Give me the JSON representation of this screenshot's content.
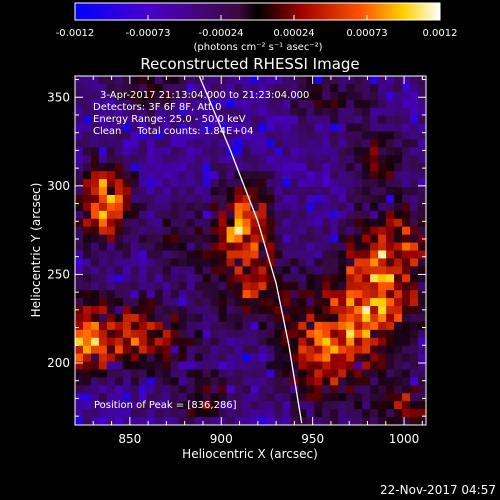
{
  "chart_data": {
    "type": "heatmap",
    "title": "Reconstructed RHESSI Image",
    "xlabel": "Heliocentric X (arcsec)",
    "ylabel": "Heliocentric Y (arcsec)",
    "xlim": [
      820,
      1012
    ],
    "ylim": [
      165,
      362
    ],
    "xticks": [
      850,
      900,
      950,
      1000
    ],
    "yticks": [
      200,
      250,
      300,
      350
    ],
    "colorbar": {
      "ticks": [
        "-0.0012",
        "-0.00073",
        "-0.00024",
        "0.00024",
        "0.00073",
        "0.0012"
      ],
      "range": [
        -0.0012,
        0.0012
      ],
      "unit_label": "(photons cm⁻² s⁻¹ asec⁻²)"
    },
    "annotations": {
      "time": "3-Apr-2017 21:13:04.000 to 21:23:04.000",
      "detectors": "Detectors: 3F 6F 8F, Att 0",
      "energy": "Energy Range: 25.0 - 50.0 keV",
      "method": "Clean     Total counts: 1.84E+04",
      "peak": "Position of Peak = [836,286]"
    },
    "sources": [
      {
        "x": 836,
        "y": 290,
        "intensity": 1.0,
        "sx": 10,
        "sy": 16
      },
      {
        "x": 850,
        "y": 215,
        "intensity": 0.72,
        "sx": 22,
        "sy": 14
      },
      {
        "x": 822,
        "y": 215,
        "intensity": 0.6,
        "sx": 10,
        "sy": 16
      },
      {
        "x": 913,
        "y": 280,
        "intensity": 0.92,
        "sx": 10,
        "sy": 16
      },
      {
        "x": 916,
        "y": 245,
        "intensity": 0.6,
        "sx": 14,
        "sy": 16
      },
      {
        "x": 955,
        "y": 205,
        "intensity": 0.75,
        "sx": 16,
        "sy": 22
      },
      {
        "x": 985,
        "y": 235,
        "intensity": 0.85,
        "sx": 18,
        "sy": 22
      },
      {
        "x": 995,
        "y": 270,
        "intensity": 0.55,
        "sx": 14,
        "sy": 14
      },
      {
        "x": 1000,
        "y": 175,
        "intensity": 0.55,
        "sx": 12,
        "sy": 10
      },
      {
        "x": 985,
        "y": 315,
        "intensity": 0.45,
        "sx": 12,
        "sy": 12
      },
      {
        "x": 860,
        "y": 355,
        "intensity": 0.35,
        "sx": 20,
        "sy": 8
      },
      {
        "x": 960,
        "y": 350,
        "intensity": 0.35,
        "sx": 18,
        "sy": 8
      },
      {
        "x": 890,
        "y": 180,
        "intensity": 0.4,
        "sx": 14,
        "sy": 10
      },
      {
        "x": 880,
        "y": 270,
        "intensity": 0.35,
        "sx": 12,
        "sy": 14
      }
    ],
    "limb": [
      [
        888,
        362
      ],
      [
        905,
        320
      ],
      [
        920,
        280
      ],
      [
        930,
        245
      ],
      [
        937,
        210
      ],
      [
        944,
        166
      ]
    ]
  },
  "footer": {
    "date": "22-Nov-2017 04:57"
  }
}
